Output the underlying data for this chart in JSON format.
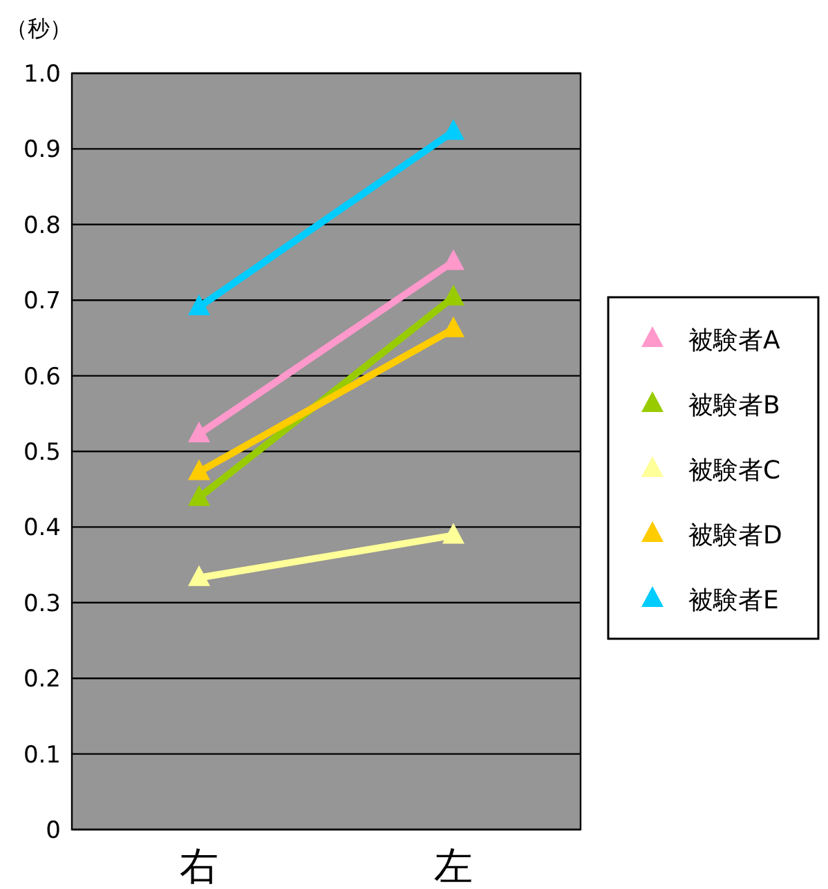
{
  "chart_data": {
    "type": "line",
    "ylabel": "（秒）",
    "categories": [
      "右",
      "左"
    ],
    "series": [
      {
        "name": "被験者A",
        "color": "#ff99cc",
        "values": [
          0.523,
          0.751
        ]
      },
      {
        "name": "被験者B",
        "color": "#99cc00",
        "values": [
          0.439,
          0.704
        ]
      },
      {
        "name": "被験者C",
        "color": "#ffff99",
        "values": [
          0.333,
          0.389
        ]
      },
      {
        "name": "被験者D",
        "color": "#ffcc00",
        "values": [
          0.473,
          0.662
        ]
      },
      {
        "name": "被験者E",
        "color": "#00ccff",
        "values": [
          0.691,
          0.923
        ]
      }
    ],
    "ylim": [
      0,
      1
    ],
    "yticks": [
      0,
      0.1,
      0.2,
      0.3,
      0.4,
      0.5,
      0.6,
      0.7,
      0.8,
      0.9,
      {
        "value": 1,
        "label": "1.0"
      }
    ],
    "grid": "y",
    "legend": "right",
    "marker": "triangle",
    "line_style": "solid"
  }
}
